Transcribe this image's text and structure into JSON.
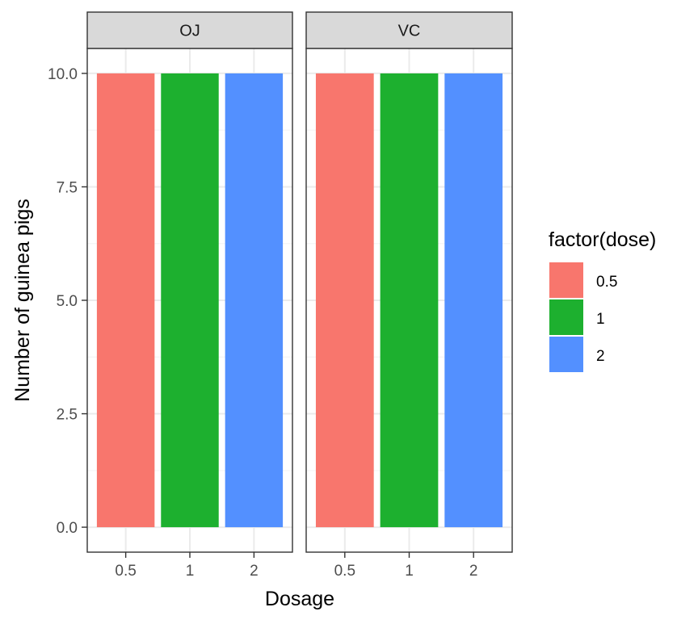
{
  "chart_data": {
    "type": "bar",
    "facets": [
      "OJ",
      "VC"
    ],
    "categories": [
      "0.5",
      "1",
      "2"
    ],
    "series": [
      {
        "facet": "OJ",
        "values": [
          10,
          10,
          10
        ]
      },
      {
        "facet": "VC",
        "values": [
          10,
          10,
          10
        ]
      }
    ],
    "xlabel": "Dosage",
    "ylabel": "Number of guinea pigs",
    "ylim": [
      -0.55,
      10.55
    ],
    "yticks": [
      0,
      2.5,
      5,
      7.5,
      10
    ],
    "ytick_labels": [
      "0.0",
      "2.5",
      "5.0",
      "7.5",
      "10.0"
    ],
    "grid": true,
    "legend": {
      "title": "factor(dose)",
      "position": "right",
      "entries": [
        {
          "label": "0.5",
          "color": "#F8766D"
        },
        {
          "label": "1",
          "color": "#1DB02F"
        },
        {
          "label": "2",
          "color": "#5390FF"
        }
      ]
    }
  },
  "colors": {
    "panel_border": "#333333",
    "strip_fill": "#D9D9D9",
    "grid_major": "#EBEBEB",
    "grid_minor": "#F5F5F5",
    "tick_text": "#4D4D4D"
  }
}
